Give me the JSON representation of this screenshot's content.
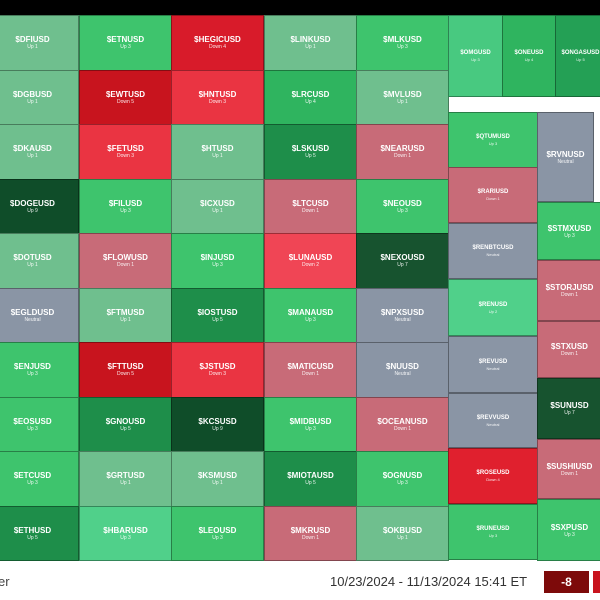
{
  "footer": {
    "tail_text": "er",
    "date_range": "10/23/2024 - 11/13/2024 15:41 ET",
    "score": "-8",
    "score_color": "#7d0a0a"
  },
  "colors": {
    "up_light": "#6fbf8e",
    "up": "#3ec46d",
    "up_dark": "#1e8e4a",
    "up_deep": "#0f4d29",
    "down_light": "#c86b78",
    "down": "#ea3442",
    "down_deep": "#c8141e",
    "neutral": "#8a95a5"
  },
  "chart_data": {
    "type": "heatmap",
    "title": "",
    "columns": [
      {
        "tiles": [
          {
            "symbol": "$DFIUSD",
            "status": "Up 1",
            "color": "#6fbf8e"
          },
          {
            "symbol": "$DGBUSD",
            "status": "Up 1",
            "color": "#6fbf8e"
          },
          {
            "symbol": "$DKAUSD",
            "status": "Up 1",
            "color": "#6fbf8e"
          },
          {
            "symbol": "$DOGEUSD",
            "status": "Up 9",
            "color": "#0f4d29"
          },
          {
            "symbol": "$DOTUSD",
            "status": "Up 1",
            "color": "#6fbf8e"
          },
          {
            "symbol": "$EGLDUSD",
            "status": "Neutral",
            "color": "#8a95a5"
          },
          {
            "symbol": "$ENJUSD",
            "status": "Up 3",
            "color": "#3ec46d"
          },
          {
            "symbol": "$EOSUSD",
            "status": "Up 3",
            "color": "#3ec46d"
          },
          {
            "symbol": "$ETCUSD",
            "status": "Up 3",
            "color": "#3ec46d"
          },
          {
            "symbol": "$ETHUSD",
            "status": "Up 5",
            "color": "#1e8e4a"
          }
        ]
      },
      {
        "tiles": [
          {
            "symbol": "$ETNUSD",
            "status": "Up 3",
            "color": "#3ec46d"
          },
          {
            "symbol": "$EWTUSD",
            "status": "Down 5",
            "color": "#c8141e"
          },
          {
            "symbol": "$FETUSD",
            "status": "Down 3",
            "color": "#ea3442"
          },
          {
            "symbol": "$FILUSD",
            "status": "Up 3",
            "color": "#3ec46d"
          },
          {
            "symbol": "$FLOWUSD",
            "status": "Down 1",
            "color": "#c86b78"
          },
          {
            "symbol": "$FTMUSD",
            "status": "Up 1",
            "color": "#6fbf8e"
          },
          {
            "symbol": "$FTTUSD",
            "status": "Down 5",
            "color": "#c8141e"
          },
          {
            "symbol": "$GNOUSD",
            "status": "Up 5",
            "color": "#1e8e4a"
          },
          {
            "symbol": "$GRTUSD",
            "status": "Up 1",
            "color": "#6fbf8e"
          },
          {
            "symbol": "$HBARUSD",
            "status": "Up 3",
            "color": "#50d08a"
          }
        ]
      },
      {
        "tiles": [
          {
            "symbol": "$HEGICUSD",
            "status": "Down 4",
            "color": "#d81b2a"
          },
          {
            "symbol": "$HNTUSD",
            "status": "Down 3",
            "color": "#ea3442"
          },
          {
            "symbol": "$HTUSD",
            "status": "Up 1",
            "color": "#6fbf8e"
          },
          {
            "symbol": "$ICXUSD",
            "status": "Up 1",
            "color": "#6fbf8e"
          },
          {
            "symbol": "$INJUSD",
            "status": "Up 3",
            "color": "#3ec46d"
          },
          {
            "symbol": "$IOSTUSD",
            "status": "Up 5",
            "color": "#1e8e4a"
          },
          {
            "symbol": "$JSTUSD",
            "status": "Down 3",
            "color": "#ea3442"
          },
          {
            "symbol": "$KCSUSD",
            "status": "Up 9",
            "color": "#0f4d29"
          },
          {
            "symbol": "$KSMUSD",
            "status": "Up 1",
            "color": "#6fbf8e"
          },
          {
            "symbol": "$LEOUSD",
            "status": "Up 3",
            "color": "#3ec46d"
          }
        ]
      },
      {
        "tiles": [
          {
            "symbol": "$LINKUSD",
            "status": "Up 1",
            "color": "#6fbf8e"
          },
          {
            "symbol": "$LRCUSD",
            "status": "Up 4",
            "color": "#2fb45f"
          },
          {
            "symbol": "$LSKUSD",
            "status": "Up 5",
            "color": "#1e8e4a"
          },
          {
            "symbol": "$LTCUSD",
            "status": "Down 1",
            "color": "#c86b78"
          },
          {
            "symbol": "$LUNAUSD",
            "status": "Down 2",
            "color": "#f04555"
          },
          {
            "symbol": "$MANAUSD",
            "status": "Up 3",
            "color": "#3ec46d"
          },
          {
            "symbol": "$MATICUSD",
            "status": "Down 1",
            "color": "#c86b78"
          },
          {
            "symbol": "$MIDBUSD",
            "status": "Up 3",
            "color": "#3ec46d"
          },
          {
            "symbol": "$MIOTAUSD",
            "status": "Up 5",
            "color": "#1e8e4a"
          },
          {
            "symbol": "$MKRUSD",
            "status": "Down 1",
            "color": "#c86b78"
          }
        ]
      },
      {
        "tiles": [
          {
            "symbol": "$MLKUSD",
            "status": "Up 3",
            "color": "#3ec46d"
          },
          {
            "symbol": "$MVLUSD",
            "status": "Up 1",
            "color": "#6fbf8e"
          },
          {
            "symbol": "$NEARUSD",
            "status": "Down 1",
            "color": "#c86b78"
          },
          {
            "symbol": "$NEOUSD",
            "status": "Up 3",
            "color": "#3ec46d"
          },
          {
            "symbol": "$NEXOUSD",
            "status": "Up 7",
            "color": "#17532f"
          },
          {
            "symbol": "$NPXSUSD",
            "status": "Neutral",
            "color": "#8a95a5"
          },
          {
            "symbol": "$NUUSD",
            "status": "Neutral",
            "color": "#8a95a5"
          },
          {
            "symbol": "$OCEANUSD",
            "status": "Down 1",
            "color": "#c86b78"
          },
          {
            "symbol": "$OGNUSD",
            "status": "Up 3",
            "color": "#3ec46d"
          },
          {
            "symbol": "$OKBUSD",
            "status": "Up 1",
            "color": "#6fbf8e"
          }
        ]
      }
    ],
    "right_region": {
      "top_row": [
        {
          "symbol": "$OMGUSD",
          "status": "Up 3",
          "color": "#48c980"
        },
        {
          "symbol": "$ONEUSD",
          "status": "Up 4",
          "color": "#2fb45f"
        },
        {
          "symbol": "$ONGASUSD",
          "status": "Up 5",
          "color": "#24a055"
        }
      ],
      "left_column": [
        {
          "symbol": "$QTUMUSD",
          "status": "Up 3",
          "color": "#3ec46d"
        },
        {
          "symbol": "$RARIUSD",
          "status": "Down 1",
          "color": "#c86b78"
        },
        {
          "symbol": "$RENBTCUSD",
          "status": "Neutral",
          "color": "#8a95a5"
        },
        {
          "symbol": "$RENUSD",
          "status": "Up 2",
          "color": "#50d08a"
        },
        {
          "symbol": "$REVUSD",
          "status": "Neutral",
          "color": "#8a95a5"
        },
        {
          "symbol": "$REVVUSD",
          "status": "Neutral",
          "color": "#8a95a5"
        },
        {
          "symbol": "$ROSEUSD",
          "status": "Down 4",
          "color": "#e0202e"
        },
        {
          "symbol": "$RUNEUSD",
          "status": "Up 3",
          "color": "#3ec46d"
        }
      ],
      "rvn": {
        "symbol": "$RVNUSD",
        "status": "Neutral",
        "color": "#8a95a5"
      },
      "right_column": [
        {
          "symbol": "$STMXUSD",
          "status": "Up 3",
          "color": "#3ec46d"
        },
        {
          "symbol": "$STORJUSD",
          "status": "Down 1",
          "color": "#c86b78"
        },
        {
          "symbol": "$STXUSD",
          "status": "Down 1",
          "color": "#c86b78"
        },
        {
          "symbol": "$SUNUSD",
          "status": "Up 7",
          "color": "#17532f"
        },
        {
          "symbol": "$SUSHIUSD",
          "status": "Down 1",
          "color": "#c86b78"
        },
        {
          "symbol": "$SXPUSD",
          "status": "Up 3",
          "color": "#3ec46d"
        }
      ]
    }
  }
}
